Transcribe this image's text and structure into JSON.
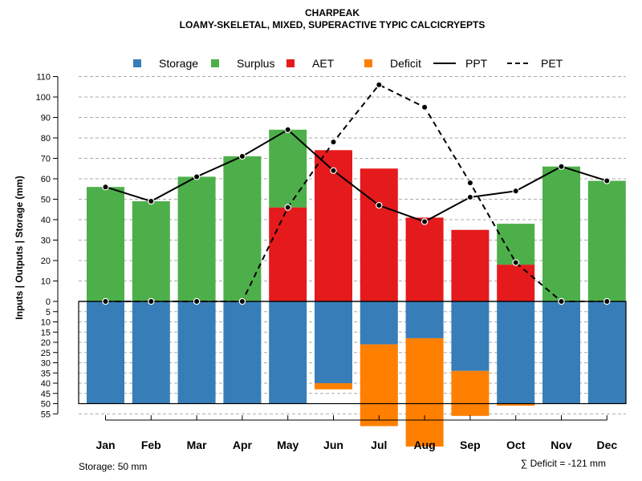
{
  "chart_data": {
    "type": "bar",
    "title": "CHARPEAK",
    "subtitle": "LOAMY-SKELETAL, MIXED, SUPERACTIVE TYPIC CALCICRYEPTS",
    "ylabel": "Inputs | Outputs | Storage     (mm)",
    "categories": [
      "Jan",
      "Feb",
      "Mar",
      "Apr",
      "May",
      "Jun",
      "Jul",
      "Aug",
      "Sep",
      "Oct",
      "Nov",
      "Dec"
    ],
    "upper_ticks": [
      "0",
      "10",
      "20",
      "30",
      "40",
      "50",
      "60",
      "70",
      "80",
      "90",
      "100",
      "110"
    ],
    "lower_ticks": [
      "5",
      "10",
      "15",
      "20",
      "25",
      "30",
      "35",
      "40",
      "45",
      "50",
      "55"
    ],
    "ylim_upper": [
      0,
      110
    ],
    "ylim_lower": [
      0,
      55
    ],
    "series": [
      {
        "name": "Storage",
        "color": "#377EB8",
        "values": [
          50,
          50,
          50,
          50,
          50,
          40,
          21,
          18,
          34,
          50,
          50,
          50
        ]
      },
      {
        "name": "Surplus",
        "color": "#4DAF4A",
        "values": [
          56,
          49,
          61,
          71,
          38,
          0,
          0,
          0,
          0,
          20,
          66,
          59
        ]
      },
      {
        "name": "AET",
        "color": "#E41A1C",
        "values": [
          0,
          0,
          0,
          0,
          46,
          74,
          65,
          41,
          35,
          18,
          0,
          0
        ]
      },
      {
        "name": "Deficit",
        "color": "#FF7F00",
        "values": [
          0,
          0,
          0,
          0,
          0,
          3,
          40,
          53,
          22,
          1,
          0,
          0
        ]
      },
      {
        "name": "PPT",
        "color": "#000000",
        "values": [
          56,
          49,
          61,
          71,
          84,
          64,
          47,
          39,
          51,
          54,
          66,
          59
        ]
      },
      {
        "name": "PET",
        "color": "#000000",
        "values": [
          0,
          0,
          0,
          0,
          46,
          78,
          106,
          95,
          58,
          19,
          0,
          0
        ]
      }
    ],
    "legend": {
      "position": "top",
      "items": [
        "Storage",
        "Surplus",
        "AET",
        "Deficit",
        "PPT",
        "PET"
      ]
    },
    "grid": true,
    "storage_note": "Storage: 50 mm",
    "deficit_note": "∑ Deficit = -121 mm"
  }
}
